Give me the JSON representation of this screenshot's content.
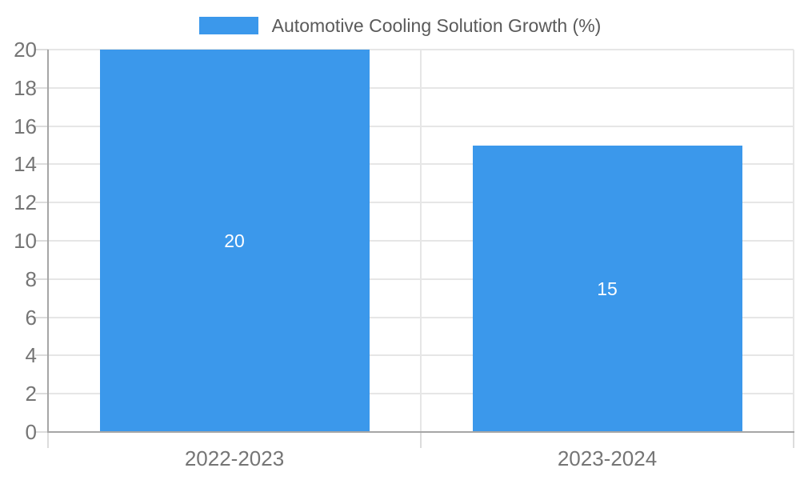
{
  "chart_data": {
    "type": "bar",
    "categories": [
      "2022-2023",
      "2023-2024"
    ],
    "series": [
      {
        "name": "Automotive Cooling Solution Growth (%)",
        "values": [
          20,
          15
        ]
      }
    ],
    "bar_labels": [
      "20",
      "15"
    ],
    "title": "",
    "xlabel": "",
    "ylabel": "",
    "ylim": [
      0,
      20
    ],
    "ytick_step": 2,
    "ytick_labels": [
      "0",
      "2",
      "4",
      "6",
      "8",
      "10",
      "12",
      "14",
      "16",
      "18",
      "20"
    ],
    "grid": true,
    "legend_position": "top"
  },
  "legend": {
    "label": "Automotive Cooling Solution Growth (%)"
  },
  "colors": {
    "bar": "#3B98EB",
    "axis_line": "#a6a6a6",
    "gridline": "#e6e6e6",
    "minor_tick": "#dcdcdc",
    "tick_label": "#757575",
    "legend_text": "#5a5a5a",
    "bar_label": "#ffffff",
    "background": "#ffffff"
  }
}
